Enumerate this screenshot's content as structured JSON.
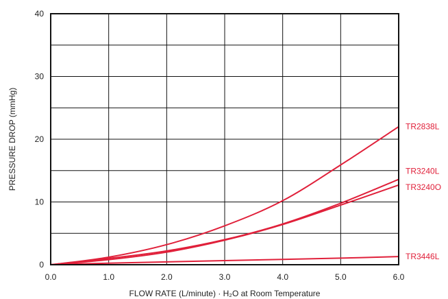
{
  "chart_data": {
    "type": "line",
    "xlabel": "FLOW RATE (L/minute) · H₂O at Room Temperature",
    "ylabel": "PRESSURE DROP (mmHg)",
    "xlim": [
      0,
      6
    ],
    "ylim": [
      0,
      40
    ],
    "x_ticks": [
      "0.0",
      "1.0",
      "2.0",
      "3.0",
      "4.0",
      "5.0",
      "6.0"
    ],
    "y_ticks": [
      "0",
      "10",
      "20",
      "30",
      "40"
    ],
    "grid": true,
    "series_color": "#e0203a",
    "series": [
      {
        "name": "TR2838L",
        "x": [
          0,
          1,
          2,
          3,
          4,
          5,
          6
        ],
        "y": [
          0,
          1.2,
          3.2,
          6.2,
          10.2,
          15.9,
          22.0
        ]
      },
      {
        "name": "TR3240L",
        "x": [
          0,
          1,
          2,
          3,
          4,
          5,
          6
        ],
        "y": [
          0,
          1.0,
          2.2,
          4.0,
          6.5,
          9.8,
          13.6
        ]
      },
      {
        "name": "TR3240O",
        "x": [
          0,
          1,
          2,
          3,
          4,
          5,
          6
        ],
        "y": [
          0,
          0.8,
          2.0,
          3.9,
          6.4,
          9.5,
          12.7
        ]
      },
      {
        "name": "TR3446L",
        "x": [
          0,
          1,
          2,
          3,
          4,
          5,
          6
        ],
        "y": [
          0,
          0.25,
          0.45,
          0.65,
          0.85,
          1.05,
          1.3
        ]
      }
    ]
  }
}
